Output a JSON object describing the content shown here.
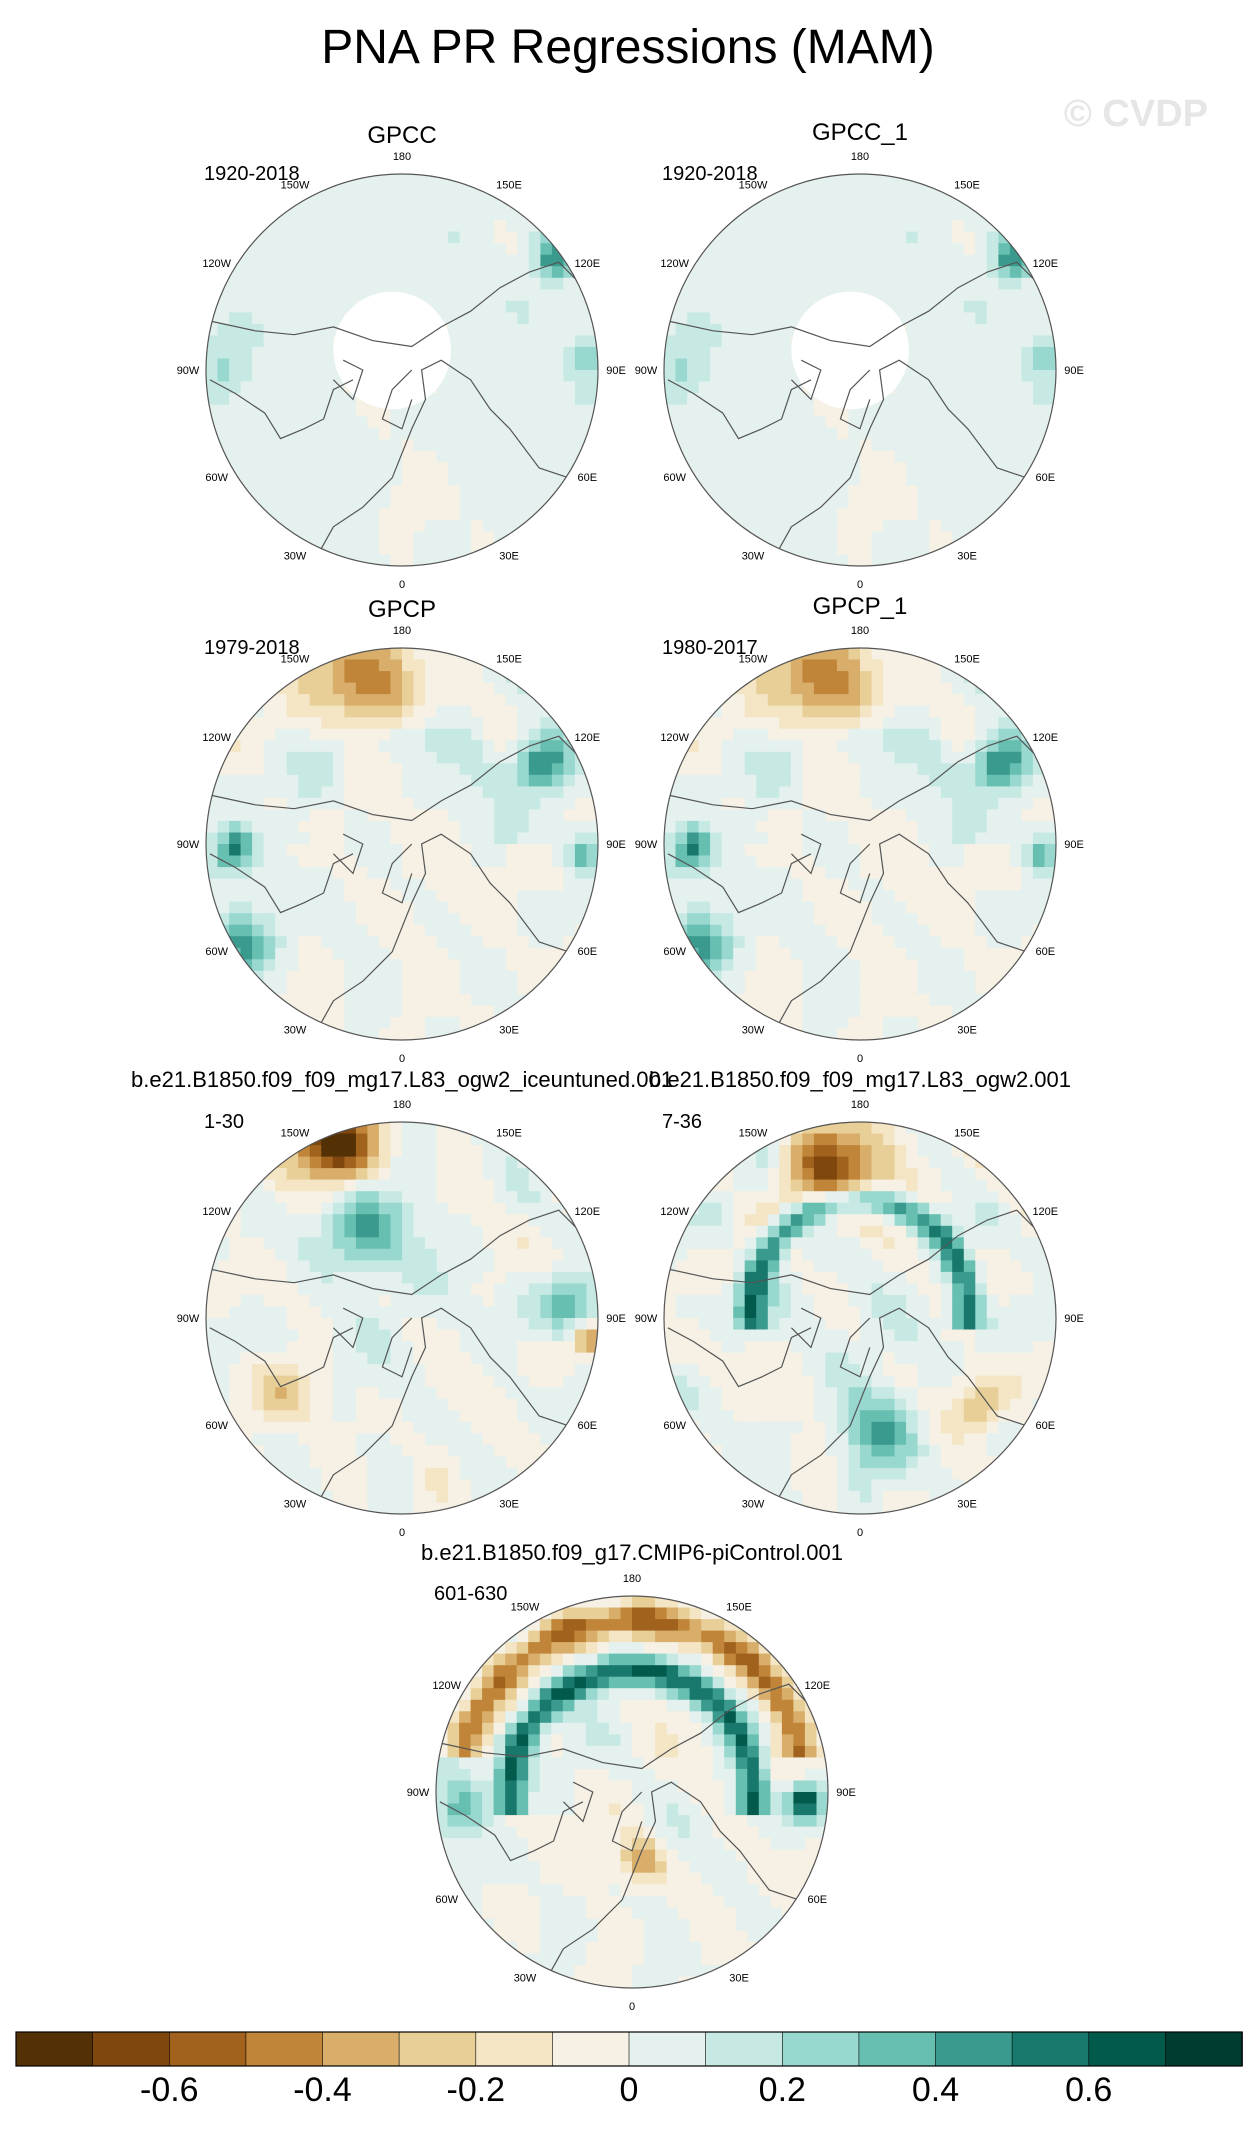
{
  "title": "PNA PR Regressions (MAM)",
  "watermark": "© CVDP",
  "chart_data": {
    "type": "heatmap",
    "projection": "north-polar-stereographic",
    "panels": [
      {
        "name": "GPCC",
        "years": "1920-2018",
        "field": "gpcc"
      },
      {
        "name": "GPCC_1",
        "years": "1920-2018",
        "field": "gpcc"
      },
      {
        "name": "GPCP",
        "years": "1979-2018",
        "field": "gpcp"
      },
      {
        "name": "GPCP_1",
        "years": "1980-2017",
        "field": "gpcp"
      },
      {
        "name": "b.e21.B1850.f09_f09_mg17.L83_ogw2_iceuntuned.001",
        "years": "1-30",
        "field": "model_a"
      },
      {
        "name": "b.e21.B1850.f09_f09_mg17.L83_ogw2.001",
        "years": "7-36",
        "field": "model_b"
      },
      {
        "name": "b.e21.B1850.f09_g17.CMIP6-piControl.001",
        "years": "601-630",
        "field": "model_c"
      }
    ],
    "longitude_labels": [
      "180",
      "150E",
      "120E",
      "90E",
      "60E",
      "30E",
      "0",
      "30W",
      "60W",
      "90W",
      "120W",
      "150W"
    ],
    "colorbar": {
      "min": -0.8,
      "max": 0.8,
      "step": 0.1,
      "tick_values": [
        -0.6,
        -0.4,
        -0.2,
        0,
        0.2,
        0.4,
        0.6
      ],
      "tick_labels": [
        "-0.6",
        "-0.4",
        "-0.2",
        "0",
        "0.2",
        "0.4",
        "0.6"
      ],
      "colors": [
        "#543005",
        "#7f470e",
        "#a0621d",
        "#c08538",
        "#d8ae6a",
        "#e8cf98",
        "#f4e5c4",
        "#f6f1e4",
        "#e5f1ef",
        "#c7e9e4",
        "#99d8cf",
        "#67bfb2",
        "#3a9a8d",
        "#18786b",
        "#015a4c",
        "#003c30"
      ]
    }
  }
}
